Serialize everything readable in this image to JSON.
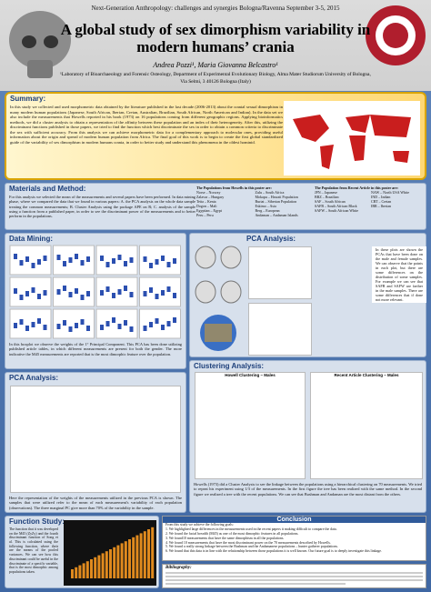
{
  "header": {
    "conference": "Next-Generation Anthropology: challenges and synergies Bologna/Ravenna September 3-5, 2015",
    "title": "A global study of sex dimorphism variability in modern humans’ crania",
    "authors": "Andrea Pozzi¹, Maria Giovanna Belcastro¹",
    "affiliation": "¹Laboratory of Bioarchaeology and Forensic Osteology, Department of Experimental Evolutionary Biology, Alma Mater Studiorum University of Bologna,",
    "address": "Via Selmi, 3 40126 Bologna (Italy)"
  },
  "summary": {
    "heading": "Summary:",
    "text": "In this study we collected and used morphometric data obtained by the literature published in the last decade (2006-2013) about the cranial sexual dimorphism in many modern human populations (Japanese, South African, Iberian, Cretan, Australian, Brazilian, South African, North American and Indian). In the data set we also include the measurements that Howells reported in his book (1973) on 16 populations coming from different geographic regions. Applying bioinformatics methods, we did a cluster analysis to obtain a representation of the affinity between these population and an index of their heterogeneity. After this, utilizing the discriminant functions published in those papers, we tried to find the function which best discriminate the sex in order to obtain a common criteria to discriminate the sex with sufficient accuracy. From this analysis we can achieve morphometric data for a complementary approach to molecular ones, providing useful information about the origin and spread of modern human population from Africa. The final goal of this work is to begin to create the first global standardized guide of the variability of sex dimorphism in modern humans crania, in order to better study and understand this phenomena in the oldest hominid."
  },
  "materials": {
    "heading": "Materials and Method:",
    "text": "For this analysis we selected the mean of the measurements and several papers have been performed. In data mining phase, where we compared the data that we found in various papers: A. the PCA analysis on the whole data sample treating the common measurements; B. Cluster Analysis using the package APE on R; C. analysis of the sample using a function from a published paper, in order to see the discriminant power of the measurements and to better perform in the populations.",
    "howells_heading": "The Populations from Howells in this poster are:",
    "howells": [
      "Norse – Norway",
      "Zalavar – Hungary",
      "Teita – Kenia",
      "Dogon – Mali",
      "Egyptian – Egypt",
      "Peru – Peru",
      "Zulu – South Africa",
      "Mokapu – Hawaii Population",
      "Buriat – Siberian Population",
      "Eskimo – Asia",
      "Berg – European",
      "Andaman – Andaman Islands"
    ],
    "recent_heading": "The Population from Recent Article in this poster are:",
    "recent": [
      "JPN – Japanese",
      "BRZ – Brazilian",
      "SAF – South African",
      "SAFB – South African Black",
      "SAFW – South African White",
      "NAW – North USA White",
      "IND – Indian",
      "CRT – Cretan",
      "IBR – Iberian"
    ]
  },
  "data_mining": {
    "heading": "Data Mining:",
    "text": "In this boxplot we observe the weights of the 1° Principal Component. This PCA has been done utilizing published article tables, in which different measurements are present for both the gender. The more indicative the M45 measurements are reported that is the most dimorphic feature over the population."
  },
  "pca": {
    "heading": "PCA Analysis:",
    "text": "In these plots are shown the PCAs that have been done on the male and female samples. We can observe that the points in each plot, but there are some differences on the distribution of some samples. For example we can see that SAFB and SAFW are farther in the male samples. There are some differences that if done not more relevant."
  },
  "pca_left": {
    "heading": "PCA Analysis:",
    "text": "Here the representation of the weights of the measurements utilized in the previous PCA is shown. The samples that were utilized refer to the mean of each measurement's variability of each population (observations). The three marginal PC give more than 70% of the variability in the sample."
  },
  "clustering": {
    "heading": "Clustering Analysis:",
    "left_title": "Howell Clustering – Males",
    "right_title": "Recent Article Clustering – Males",
    "text": "Howells (1973) did a Cluster Analysis to see the linkage between the populations using a hierarchical clustering on 70 measurements. We tried to repeat his experiment using 1/3 of the measurements. In the first figure the tree has been realized with the same method. In the second figure we realized a tree with the recent populations. We can see that Bushman and Andaman are the most distant from the others."
  },
  "function": {
    "heading": "Function Study:",
    "text": "The function that it was developed on the M45 (ZyZy) and the fourth discriminant function of Song et al. This is calculated using the following function, where their are the means of the pooled variances. We can see how this discriminant could be useful in the discriminate of a specific variable, that is the most dimorphic among populations taken."
  },
  "conclusion": {
    "heading": "Conclusion",
    "intro": "From this study we achieve the following goals:",
    "points": [
      "1. We highlighted large differences in the measurements used in the recent papers it making difficult to compare the data.",
      "2. We found the facial breadth (M45) as one of the most dimorphic features in all populations.",
      "3. We found10 measurements that have the same dimorphism in all the populations.",
      "4. We found 10 measurements that have the most discriminant power on the 70 measurements described by Howells.",
      "5. We found a really strong linkage between the Bushman and the Andamanese populations – hunter gatherer populations.",
      "6. We found that this data is in line with the relationship between those populations it is well known. Our future goal is to deeply investigate this linkage."
    ]
  },
  "bibliography": {
    "heading": "Bibliography:"
  }
}
